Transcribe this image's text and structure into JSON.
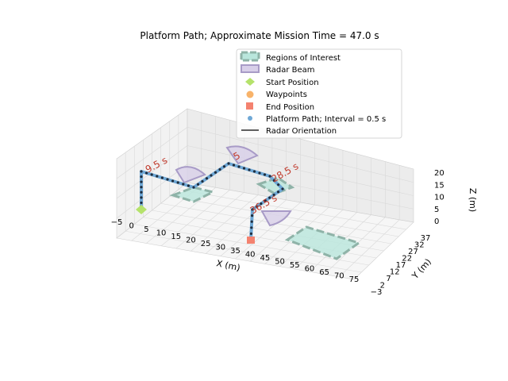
{
  "chart_data": {
    "type": "line3d",
    "title": "Platform Path; Approximate Mission Time = 47.0 s",
    "axes": {
      "x": {
        "label": "X (m)",
        "ticks": [
          "−5",
          "0",
          "5",
          "10",
          "15",
          "20",
          "25",
          "30",
          "35",
          "40",
          "45",
          "50",
          "55",
          "60",
          "65",
          "70",
          "75"
        ],
        "lim": [
          -5,
          75
        ]
      },
      "y": {
        "label": "Y (m)",
        "ticks": [
          "−3",
          "2",
          "7",
          "12",
          "17",
          "22",
          "27",
          "32",
          "37"
        ],
        "lim": [
          -3,
          37
        ]
      },
      "z": {
        "label": "Z (m)",
        "ticks": [
          "0",
          "5",
          "10",
          "15",
          "20"
        ],
        "lim": [
          0,
          20
        ]
      }
    },
    "grid": true,
    "legend": {
      "placement": "top-right",
      "entries": [
        {
          "key": "roi",
          "label": "Regions of Interest",
          "color": "#8cc9bd"
        },
        {
          "key": "beam",
          "label": "Radar Beam",
          "color": "#a89bc7"
        },
        {
          "key": "start",
          "label": "Start Position",
          "color": "#b5e26b"
        },
        {
          "key": "waypoints",
          "label": "Waypoints",
          "color": "#f8b36a"
        },
        {
          "key": "end",
          "label": "End Position",
          "color": "#f4826f"
        },
        {
          "key": "path",
          "label": "Platform Path; Interval = 0.5 s",
          "color": "#6fa8d6"
        },
        {
          "key": "orient",
          "label": "Radar Orientation",
          "color": "#2b2b2b"
        }
      ]
    },
    "start_position": [
      0,
      0,
      0
    ],
    "end_position": [
      38,
      10,
      0
    ],
    "waypoints": [
      [
        0,
        0,
        0
      ],
      [
        0,
        0,
        15
      ],
      [
        20,
        0,
        15
      ],
      [
        30,
        20,
        15
      ],
      [
        50,
        20,
        15
      ],
      [
        48,
        5,
        15
      ],
      [
        38,
        10,
        15
      ],
      [
        38,
        10,
        0
      ]
    ],
    "time_annotations": [
      {
        "text": "9.5 s",
        "at": [
          3,
          3,
          18
        ]
      },
      {
        "text": "28.5 s",
        "at": [
          52,
          18,
          18
        ]
      },
      {
        "text": "5",
        "at": [
          26,
          14,
          19
        ]
      },
      {
        "text": "36.5 s",
        "at": [
          40,
          11,
          17
        ]
      }
    ],
    "regions_of_interest": [
      {
        "center": [
          20,
          2,
          0
        ],
        "size": [
          8,
          6
        ]
      },
      {
        "center": [
          48,
          14,
          0
        ],
        "size": [
          8,
          6
        ]
      },
      {
        "center": [
          62,
          16,
          0
        ],
        "size": [
          14,
          8
        ]
      }
    ]
  }
}
